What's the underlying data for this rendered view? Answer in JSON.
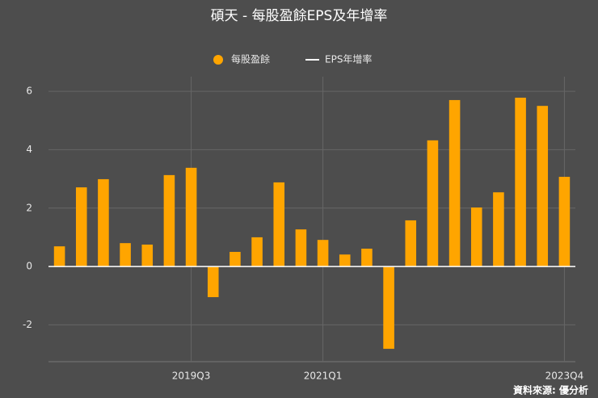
{
  "chart_data": {
    "type": "bar",
    "title": "碩天 - 每股盈餘EPS及年增率",
    "source": "資料來源: 優分析",
    "categories": [
      null,
      null,
      null,
      null,
      null,
      null,
      "2019Q3",
      null,
      null,
      null,
      null,
      null,
      "2021Q1",
      null,
      null,
      null,
      null,
      null,
      null,
      null,
      null,
      null,
      null,
      "2023Q4"
    ],
    "series": [
      {
        "name": "每股盈餘",
        "color": "#ffa500",
        "values": [
          0.69,
          2.71,
          2.99,
          0.8,
          0.75,
          3.13,
          3.38,
          -1.05,
          0.5,
          1.0,
          2.88,
          1.27,
          0.91,
          0.41,
          0.61,
          -2.82,
          1.58,
          4.32,
          5.7,
          2.02,
          2.54,
          5.78,
          5.5,
          3.07
        ]
      },
      {
        "name": "EPS年增率",
        "color": "#ffffff",
        "values": [
          null,
          null,
          null,
          null,
          null,
          null,
          null,
          null,
          null,
          null,
          null,
          null,
          null,
          null,
          null,
          null,
          null,
          null,
          null,
          null,
          null,
          null,
          null,
          null
        ]
      }
    ],
    "ylim": [
      -3.26,
      6.5
    ],
    "yticks": [
      -2,
      0,
      2,
      4,
      6
    ],
    "grid": true
  }
}
